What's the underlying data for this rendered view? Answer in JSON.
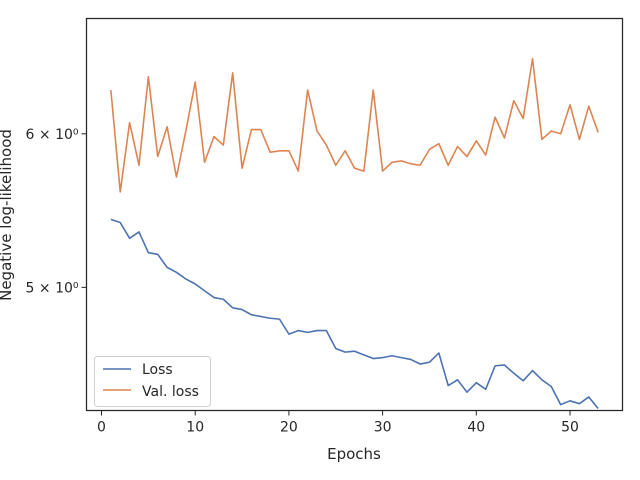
{
  "chart_data": {
    "type": "line",
    "title": "",
    "xlabel": "Epochs",
    "ylabel": "Negative log-likelihood",
    "yscale": "log",
    "xlim": [
      -1.6,
      55.6
    ],
    "ylim": [
      4.32,
      6.88
    ],
    "xticks": [
      0,
      10,
      20,
      30,
      40,
      50
    ],
    "xtick_labels": [
      "0",
      "10",
      "20",
      "30",
      "40",
      "50"
    ],
    "yticks": [
      5,
      6
    ],
    "ytick_labels": [
      "5 × 10⁰",
      "6 × 10⁰"
    ],
    "grid": false,
    "legend_position": "lower-left",
    "x": [
      1,
      2,
      3,
      4,
      5,
      6,
      7,
      8,
      9,
      10,
      11,
      12,
      13,
      14,
      15,
      16,
      17,
      18,
      19,
      20,
      21,
      22,
      23,
      24,
      25,
      26,
      27,
      28,
      29,
      30,
      31,
      32,
      33,
      34,
      35,
      36,
      37,
      38,
      39,
      40,
      41,
      42,
      43,
      44,
      45,
      46,
      47,
      48,
      49,
      50,
      51,
      52,
      53
    ],
    "series": [
      {
        "name": "Loss",
        "color": "#4c72b0",
        "values": [
          5.42,
          5.4,
          5.3,
          5.34,
          5.21,
          5.2,
          5.12,
          5.09,
          5.05,
          5.02,
          4.98,
          4.94,
          4.93,
          4.88,
          4.87,
          4.84,
          4.83,
          4.82,
          4.815,
          4.73,
          4.75,
          4.74,
          4.75,
          4.75,
          4.65,
          4.63,
          4.635,
          4.615,
          4.595,
          4.6,
          4.61,
          4.6,
          4.59,
          4.565,
          4.575,
          4.625,
          4.45,
          4.48,
          4.415,
          4.465,
          4.43,
          4.555,
          4.56,
          4.515,
          4.475,
          4.53,
          4.48,
          4.445,
          4.35,
          4.37,
          4.355,
          4.39,
          4.33
        ]
      },
      {
        "name": "Val. loss",
        "color": "#dd8452",
        "values": [
          6.32,
          5.6,
          6.08,
          5.78,
          6.42,
          5.84,
          6.05,
          5.7,
          6.02,
          6.38,
          5.8,
          5.98,
          5.92,
          6.45,
          5.76,
          6.03,
          6.03,
          5.87,
          5.88,
          5.88,
          5.74,
          6.32,
          6.02,
          5.92,
          5.78,
          5.88,
          5.76,
          5.74,
          6.32,
          5.74,
          5.8,
          5.81,
          5.79,
          5.78,
          5.89,
          5.93,
          5.78,
          5.91,
          5.84,
          5.95,
          5.85,
          6.12,
          5.97,
          6.24,
          6.11,
          6.56,
          5.96,
          6.02,
          6.0,
          6.21,
          5.96,
          6.2,
          6.01
        ]
      }
    ]
  }
}
